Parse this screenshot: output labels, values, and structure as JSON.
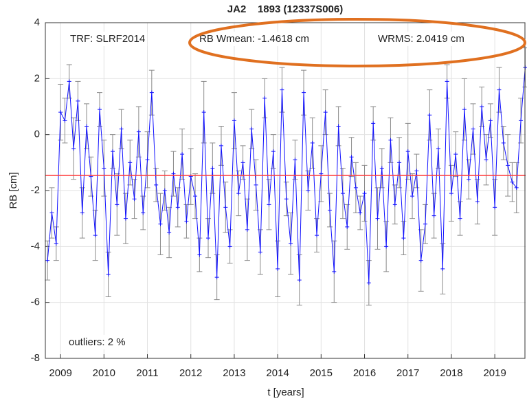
{
  "chart_data": {
    "type": "errorline",
    "title": "JA2    1893 (12337S006)",
    "x_label": "t [years]",
    "y_label": "RB [cm]",
    "annotations": [
      "TRF: SLRF2014",
      "RB Wmean: -1.4618 cm",
      "WRMS: 2.0419 cm",
      "outliers: 2 %"
    ],
    "reference_line": {
      "value": -1.4618,
      "color": "#ff4040"
    },
    "color": "#1010ff",
    "error_color": "#8a8a8a",
    "grid": true,
    "xlim": [
      2008.65,
      2019.71
    ],
    "xticks": [
      2009,
      2010,
      2011,
      2012,
      2013,
      2014,
      2015,
      2016,
      2017,
      2018,
      2019
    ],
    "ylim": [
      -8,
      4
    ],
    "yticks": [
      -8,
      -6,
      -4,
      -2,
      0,
      2,
      4
    ],
    "x": [
      2008.7,
      2008.8,
      2008.9,
      2009.0,
      2009.1,
      2009.2,
      2009.3,
      2009.4,
      2009.5,
      2009.6,
      2009.7,
      2009.8,
      2009.9,
      2010.0,
      2010.1,
      2010.2,
      2010.3,
      2010.4,
      2010.5,
      2010.6,
      2010.7,
      2010.8,
      2010.9,
      2011.0,
      2011.1,
      2011.2,
      2011.3,
      2011.4,
      2011.5,
      2011.6,
      2011.7,
      2011.8,
      2011.9,
      2012.0,
      2012.1,
      2012.2,
      2012.3,
      2012.4,
      2012.5,
      2012.6,
      2012.7,
      2012.8,
      2012.9,
      2013.0,
      2013.1,
      2013.2,
      2013.3,
      2013.4,
      2013.5,
      2013.6,
      2013.7,
      2013.8,
      2013.9,
      2014.0,
      2014.1,
      2014.2,
      2014.3,
      2014.4,
      2014.5,
      2014.6,
      2014.7,
      2014.8,
      2014.9,
      2015.0,
      2015.1,
      2015.2,
      2015.3,
      2015.4,
      2015.5,
      2015.6,
      2015.7,
      2015.8,
      2015.9,
      2016.0,
      2016.1,
      2016.2,
      2016.3,
      2016.4,
      2016.5,
      2016.6,
      2016.7,
      2016.8,
      2016.9,
      2017.0,
      2017.1,
      2017.2,
      2017.3,
      2017.4,
      2017.5,
      2017.6,
      2017.7,
      2017.8,
      2017.9,
      2018.0,
      2018.1,
      2018.2,
      2018.3,
      2018.4,
      2018.5,
      2018.6,
      2018.7,
      2018.8,
      2018.9,
      2019.0,
      2019.1,
      2019.2,
      2019.3,
      2019.4,
      2019.5,
      2019.6,
      2019.7
    ],
    "values": [
      -4.5,
      -2.8,
      -3.9,
      0.8,
      0.5,
      1.9,
      -0.5,
      1.2,
      -2.8,
      0.3,
      -1.5,
      -3.6,
      0.9,
      -1.2,
      -5.0,
      -0.6,
      -2.5,
      0.2,
      -3.0,
      -1.0,
      -2.3,
      0.1,
      -2.8,
      -0.9,
      1.5,
      -1.8,
      -3.2,
      -2.0,
      -3.5,
      -1.4,
      -2.6,
      -0.7,
      -3.1,
      -1.5,
      -2.2,
      -4.3,
      0.8,
      -3.7,
      -1.2,
      -5.1,
      -0.4,
      -2.6,
      -4.0,
      0.5,
      -2.1,
      -1.0,
      -3.4,
      0.2,
      -1.8,
      -4.2,
      1.3,
      -2.5,
      -0.6,
      -4.8,
      1.6,
      -2.3,
      -3.9,
      -0.9,
      -5.2,
      1.5,
      -2.0,
      -0.3,
      -3.6,
      -1.4,
      0.8,
      -2.7,
      -4.9,
      0.3,
      -2.1,
      -3.3,
      -0.8,
      -1.9,
      -2.8,
      -2.1,
      -5.3,
      0.4,
      -3.0,
      -1.2,
      -4.0,
      -0.2,
      -2.5,
      -1.0,
      -3.7,
      -0.6,
      -2.2,
      -1.3,
      -4.5,
      -3.2,
      0.7,
      -2.9,
      -0.5,
      -4.8,
      1.9,
      -2.1,
      -0.7,
      -3.0,
      0.9,
      -1.6,
      0.2,
      -2.4,
      1.0,
      -0.9,
      0.5,
      -2.6,
      1.6,
      -0.3,
      -1.1,
      -1.7,
      -1.9,
      0.5,
      2.4
    ],
    "errors": [
      0.7,
      0.9,
      0.6,
      1.0,
      0.8,
      0.6,
      1.1,
      0.7,
      0.9,
      0.8,
      0.7,
      0.9,
      0.6,
      1.0,
      0.8,
      0.6,
      1.1,
      0.7,
      0.9,
      0.8,
      0.7,
      0.9,
      0.6,
      1.0,
      0.8,
      0.6,
      1.1,
      0.7,
      0.9,
      0.8,
      0.7,
      0.9,
      0.6,
      1.0,
      0.8,
      0.6,
      1.1,
      0.7,
      0.9,
      0.8,
      0.7,
      0.9,
      0.6,
      1.0,
      0.8,
      0.6,
      1.1,
      0.7,
      0.9,
      0.8,
      0.7,
      0.9,
      0.6,
      1.0,
      0.8,
      0.6,
      1.1,
      0.7,
      0.9,
      0.8,
      0.7,
      0.9,
      0.6,
      1.0,
      0.8,
      0.6,
      1.1,
      0.7,
      0.9,
      0.8,
      0.7,
      0.9,
      0.6,
      1.0,
      0.8,
      0.6,
      1.1,
      0.7,
      0.9,
      0.8,
      0.7,
      0.9,
      0.6,
      1.0,
      0.8,
      0.6,
      1.1,
      0.7,
      0.9,
      0.8,
      0.7,
      0.9,
      0.6,
      1.0,
      0.8,
      0.6,
      1.1,
      0.7,
      0.9,
      0.8,
      0.7,
      0.9,
      0.6,
      1.0,
      0.8,
      0.6,
      1.1,
      0.7,
      0.9,
      0.8,
      0.7
    ]
  }
}
